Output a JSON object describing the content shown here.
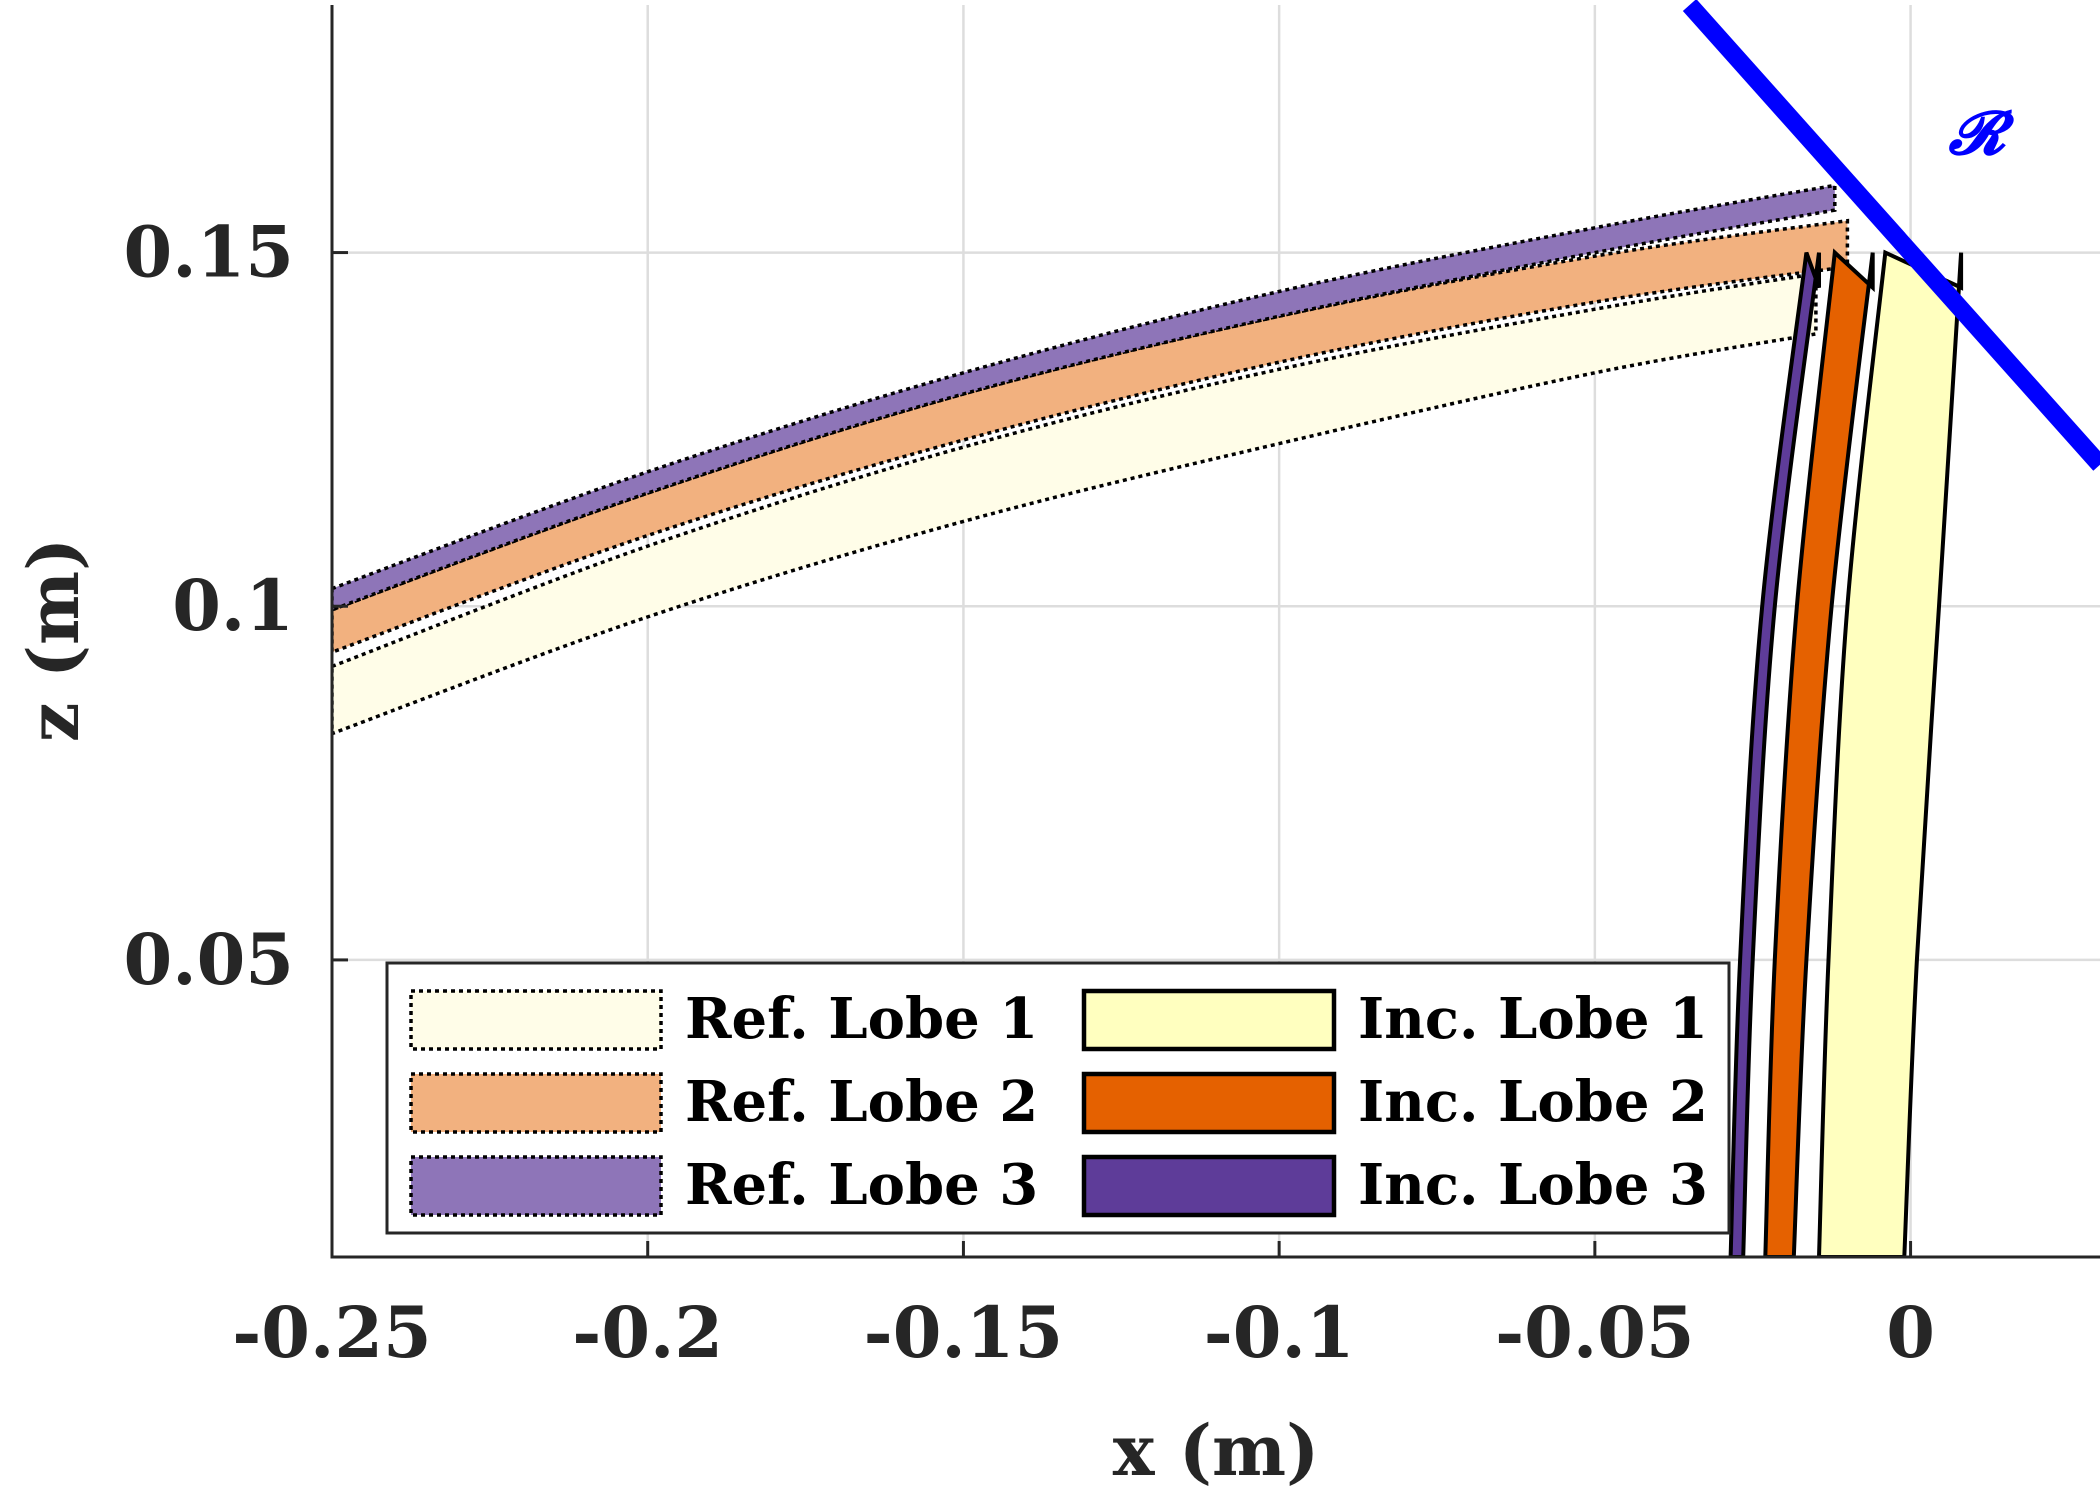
{
  "chart_data": {
    "type": "area",
    "title": "",
    "xlabel": "x (m)",
    "ylabel": "z (m)",
    "xlim": [
      -0.25,
      0.03
    ],
    "ylim": [
      0.008,
      0.185
    ],
    "grid": true,
    "xticks": [
      -0.25,
      -0.2,
      -0.15,
      -0.1,
      -0.05,
      0
    ],
    "xtick_labels": [
      "-0.25",
      "-0.2",
      "-0.15",
      "-0.1",
      "-0.05",
      "0"
    ],
    "yticks": [
      0.05,
      0.1,
      0.15
    ],
    "ytick_labels": [
      "0.05",
      "0.1",
      "0.15"
    ],
    "legend_position": "bottom-left",
    "annotations": [
      {
        "text": "𝓡",
        "at": [
          0.006,
          0.164
        ],
        "color": "#0000FF"
      }
    ],
    "reflector_line": {
      "name": "R",
      "x": [
        -0.035,
        0.03
      ],
      "z": [
        0.185,
        0.12
      ],
      "color": "#0000FF"
    },
    "series": [
      {
        "name": "Ref. Lobe 1",
        "kind": "reflected",
        "color": "#FFFDE8",
        "x": [
          -0.25,
          -0.2,
          -0.15,
          -0.1,
          -0.05,
          -0.015
        ],
        "upper": [
          0.0915,
          0.1085,
          0.1225,
          0.1335,
          0.142,
          0.147
        ],
        "lower": [
          0.082,
          0.0985,
          0.112,
          0.123,
          0.133,
          0.1385
        ]
      },
      {
        "name": "Ref. Lobe 2",
        "kind": "reflected",
        "color": "#F2B17F",
        "x": [
          -0.25,
          -0.2,
          -0.15,
          -0.1,
          -0.05,
          -0.01
        ],
        "upper": [
          0.0995,
          0.116,
          0.13,
          0.141,
          0.1495,
          0.1545
        ],
        "lower": [
          0.0935,
          0.11,
          0.1235,
          0.1345,
          0.143,
          0.148
        ]
      },
      {
        "name": "Ref. Lobe 3",
        "kind": "reflected",
        "color": "#8E75B8",
        "x": [
          -0.25,
          -0.2,
          -0.15,
          -0.1,
          -0.05,
          -0.012
        ],
        "upper": [
          0.1025,
          0.119,
          0.133,
          0.1445,
          0.1535,
          0.1595
        ],
        "lower": [
          0.0995,
          0.116,
          0.13,
          0.141,
          0.15,
          0.156
        ]
      },
      {
        "name": "Inc. Lobe 1",
        "kind": "incident",
        "color": "#FFFFBF",
        "z": [
          0.008,
          0.05,
          0.1,
          0.15
        ],
        "left": [
          -0.0145,
          -0.013,
          -0.01,
          -0.004
        ],
        "right": [
          -0.001,
          0.001,
          0.0045,
          0.008
        ]
      },
      {
        "name": "Inc. Lobe 2",
        "kind": "incident",
        "color": "#E56100",
        "z": [
          0.008,
          0.05,
          0.1,
          0.15
        ],
        "left": [
          -0.023,
          -0.0215,
          -0.018,
          -0.012
        ],
        "right": [
          -0.0185,
          -0.0165,
          -0.0125,
          -0.006
        ]
      },
      {
        "name": "Inc. Lobe 3",
        "kind": "incident",
        "color": "#5E3C99",
        "z": [
          0.008,
          0.05,
          0.1,
          0.15
        ],
        "left": [
          -0.0285,
          -0.027,
          -0.0235,
          -0.0165
        ],
        "right": [
          -0.0265,
          -0.025,
          -0.0215,
          -0.0145
        ]
      }
    ]
  }
}
